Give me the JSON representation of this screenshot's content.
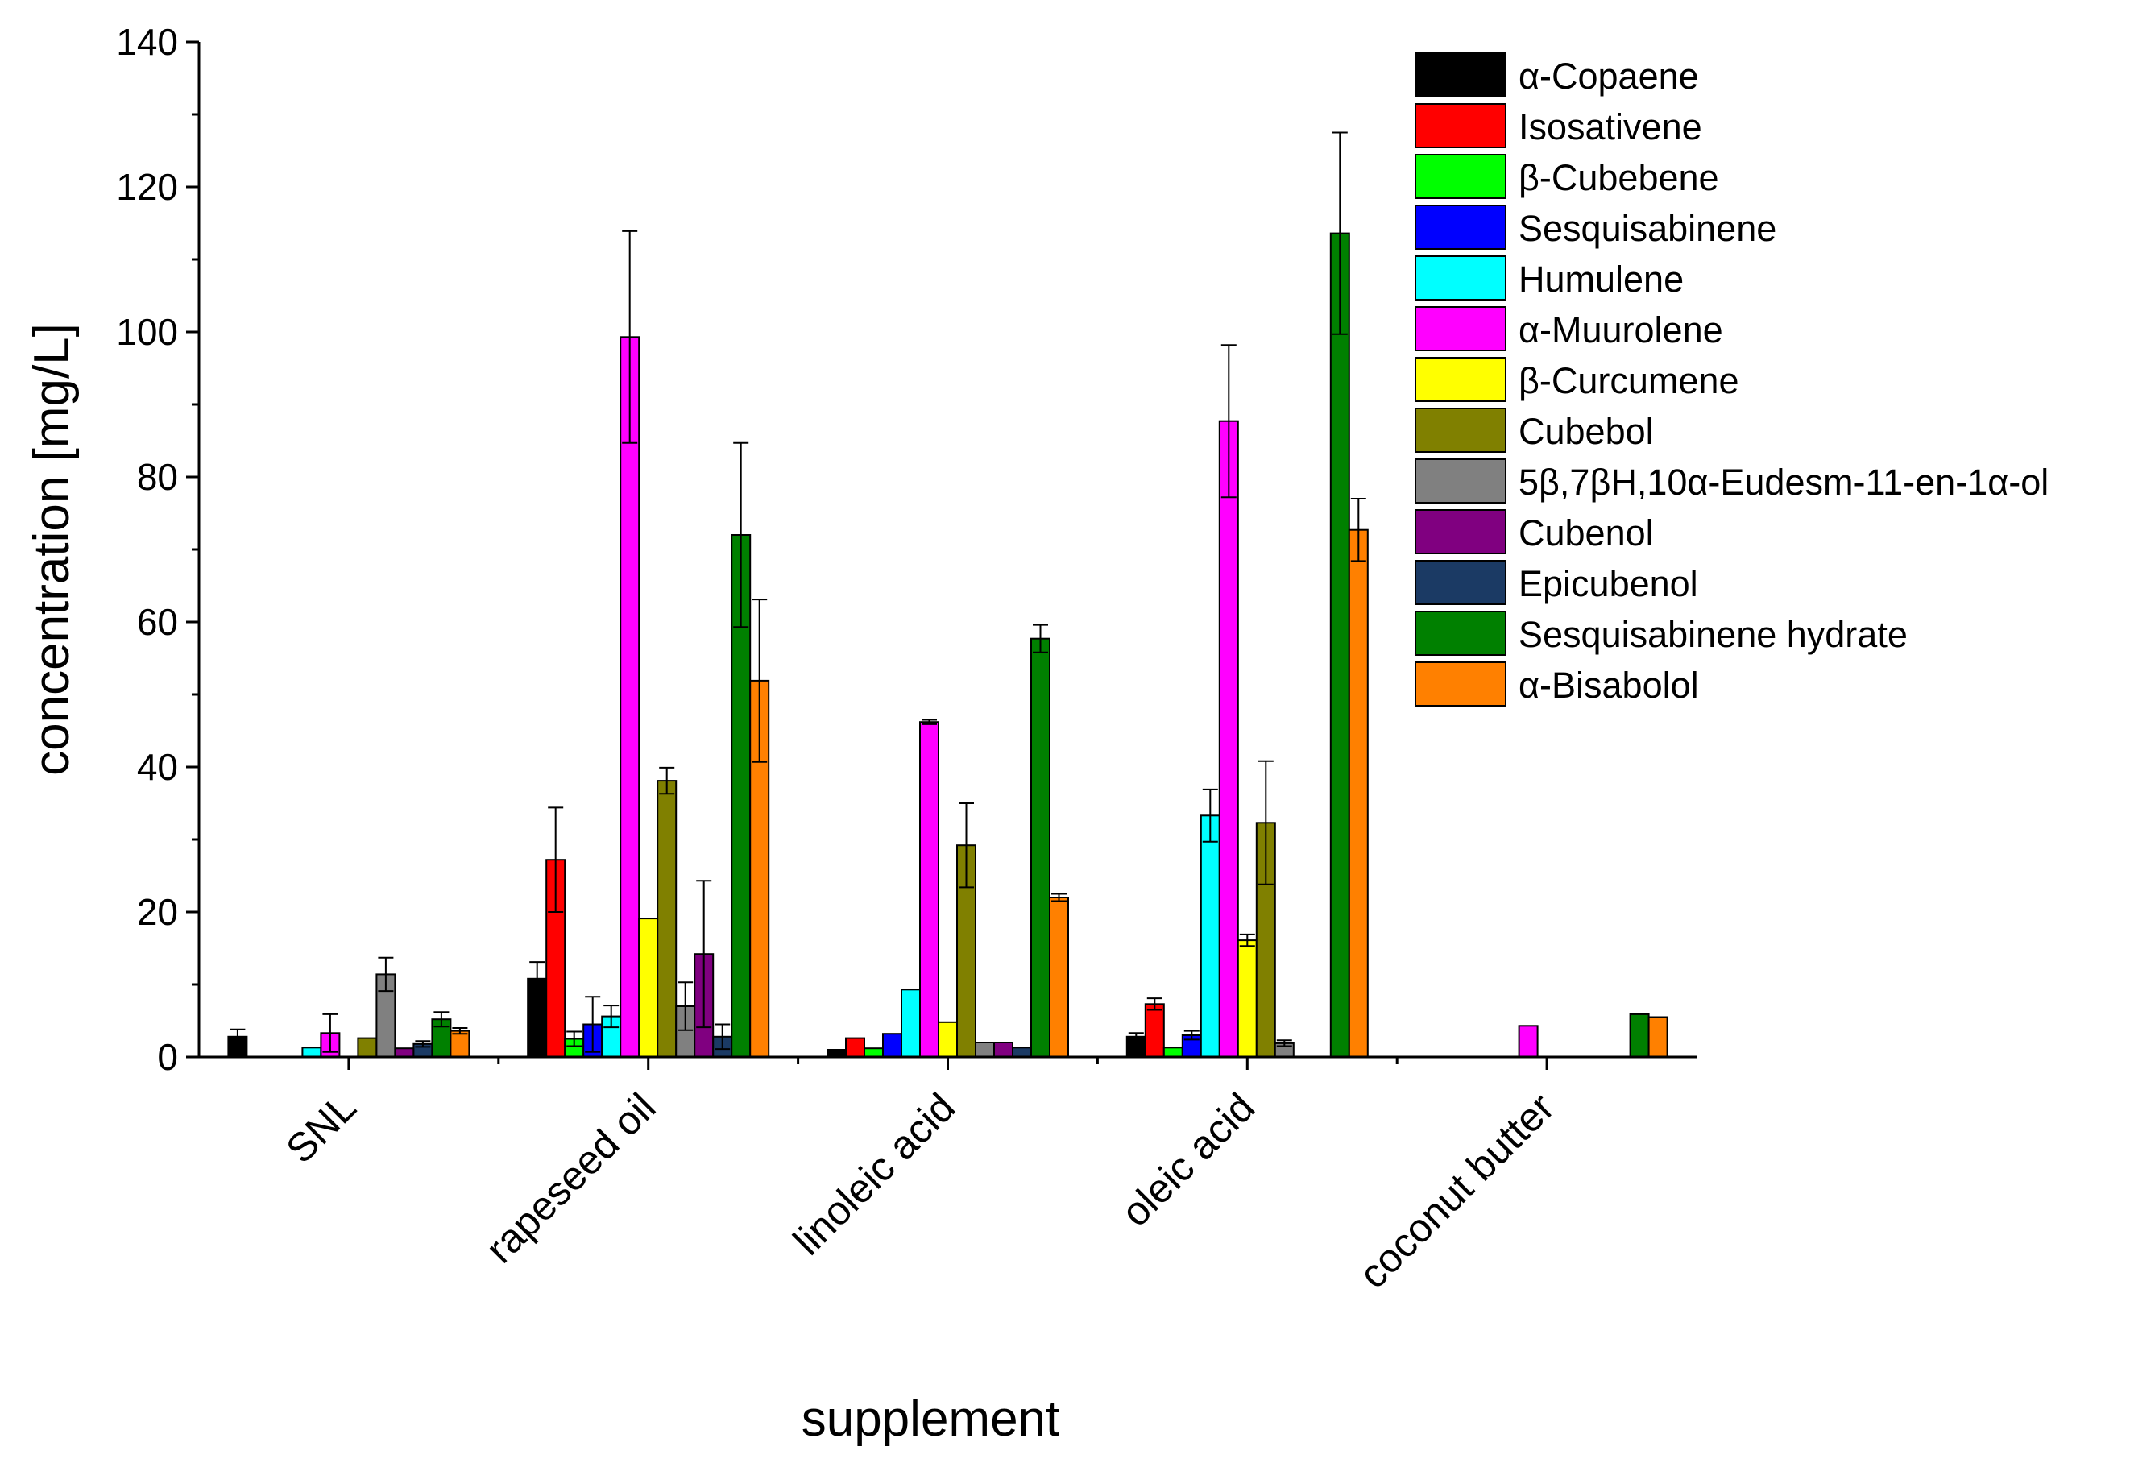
{
  "chart_data": {
    "type": "bar",
    "title": "",
    "xlabel": "supplement",
    "ylabel": "concentration [mg/L]",
    "ylim": [
      0,
      140
    ],
    "yticks": [
      0,
      20,
      40,
      60,
      80,
      100,
      120,
      140
    ],
    "grid": false,
    "legend_position": "top-right",
    "categories": [
      "SNL",
      "rapeseed oil",
      "linoleic acid",
      "oleic acid",
      "coconut butter"
    ],
    "series": [
      {
        "name": "α-Copaene",
        "color": "#000000",
        "values": [
          2.8,
          10.8,
          1.0,
          2.8,
          0
        ],
        "errors": [
          1.0,
          2.3,
          0,
          0.5,
          0
        ]
      },
      {
        "name": "Isosativene",
        "color": "#ff0000",
        "values": [
          0,
          27.2,
          2.6,
          7.3,
          0
        ],
        "errors": [
          0,
          7.2,
          0,
          0.8,
          0
        ]
      },
      {
        "name": "β-Cubebene",
        "color": "#00ff00",
        "values": [
          0,
          2.5,
          1.2,
          1.3,
          0
        ],
        "errors": [
          0,
          1.0,
          0,
          0,
          0
        ]
      },
      {
        "name": "Sesquisabinene",
        "color": "#0000ff",
        "values": [
          0,
          4.5,
          3.2,
          3.0,
          0
        ],
        "errors": [
          0,
          3.8,
          0,
          0.6,
          0
        ]
      },
      {
        "name": "Humulene",
        "color": "#00ffff",
        "values": [
          1.3,
          5.6,
          9.3,
          33.3,
          0
        ],
        "errors": [
          0,
          1.5,
          0,
          3.6,
          0
        ]
      },
      {
        "name": "α-Muurolene",
        "color": "#ff00ff",
        "values": [
          3.3,
          99.3,
          46.2,
          87.7,
          4.3
        ],
        "errors": [
          2.6,
          14.6,
          0.3,
          10.5,
          0
        ]
      },
      {
        "name": "β-Curcumene",
        "color": "#ffff00",
        "values": [
          0,
          19.1,
          4.8,
          16.1,
          0
        ],
        "errors": [
          0,
          0,
          0,
          0.8,
          0
        ]
      },
      {
        "name": "Cubebol",
        "color": "#808000",
        "values": [
          2.6,
          38.1,
          29.2,
          32.3,
          0
        ],
        "errors": [
          0,
          1.8,
          5.8,
          8.5,
          0
        ]
      },
      {
        "name": "5β,7βH,10α-Eudesm-11-en-1α-ol",
        "color": "#808080",
        "values": [
          11.4,
          7.0,
          2.0,
          1.9,
          0
        ],
        "errors": [
          2.3,
          3.3,
          0,
          0.4,
          0
        ]
      },
      {
        "name": "Cubenol",
        "color": "#800080",
        "values": [
          1.2,
          14.2,
          2.0,
          0,
          0
        ],
        "errors": [
          0,
          10.1,
          0,
          0,
          0
        ]
      },
      {
        "name": "Epicubenol",
        "color": "#1b3a64",
        "values": [
          1.8,
          2.8,
          1.3,
          0,
          0
        ],
        "errors": [
          0.4,
          1.7,
          0,
          0,
          0
        ]
      },
      {
        "name": "Sesquisabinene hydrate",
        "color": "#008000",
        "values": [
          5.2,
          72.0,
          57.7,
          113.6,
          5.9
        ],
        "errors": [
          1.0,
          12.7,
          1.9,
          13.9,
          0
        ]
      },
      {
        "name": "α-Bisabolol",
        "color": "#ff8000",
        "values": [
          3.6,
          51.9,
          22.0,
          72.7,
          5.5
        ],
        "errors": [
          0.4,
          11.2,
          0.5,
          4.3,
          0
        ]
      }
    ]
  }
}
